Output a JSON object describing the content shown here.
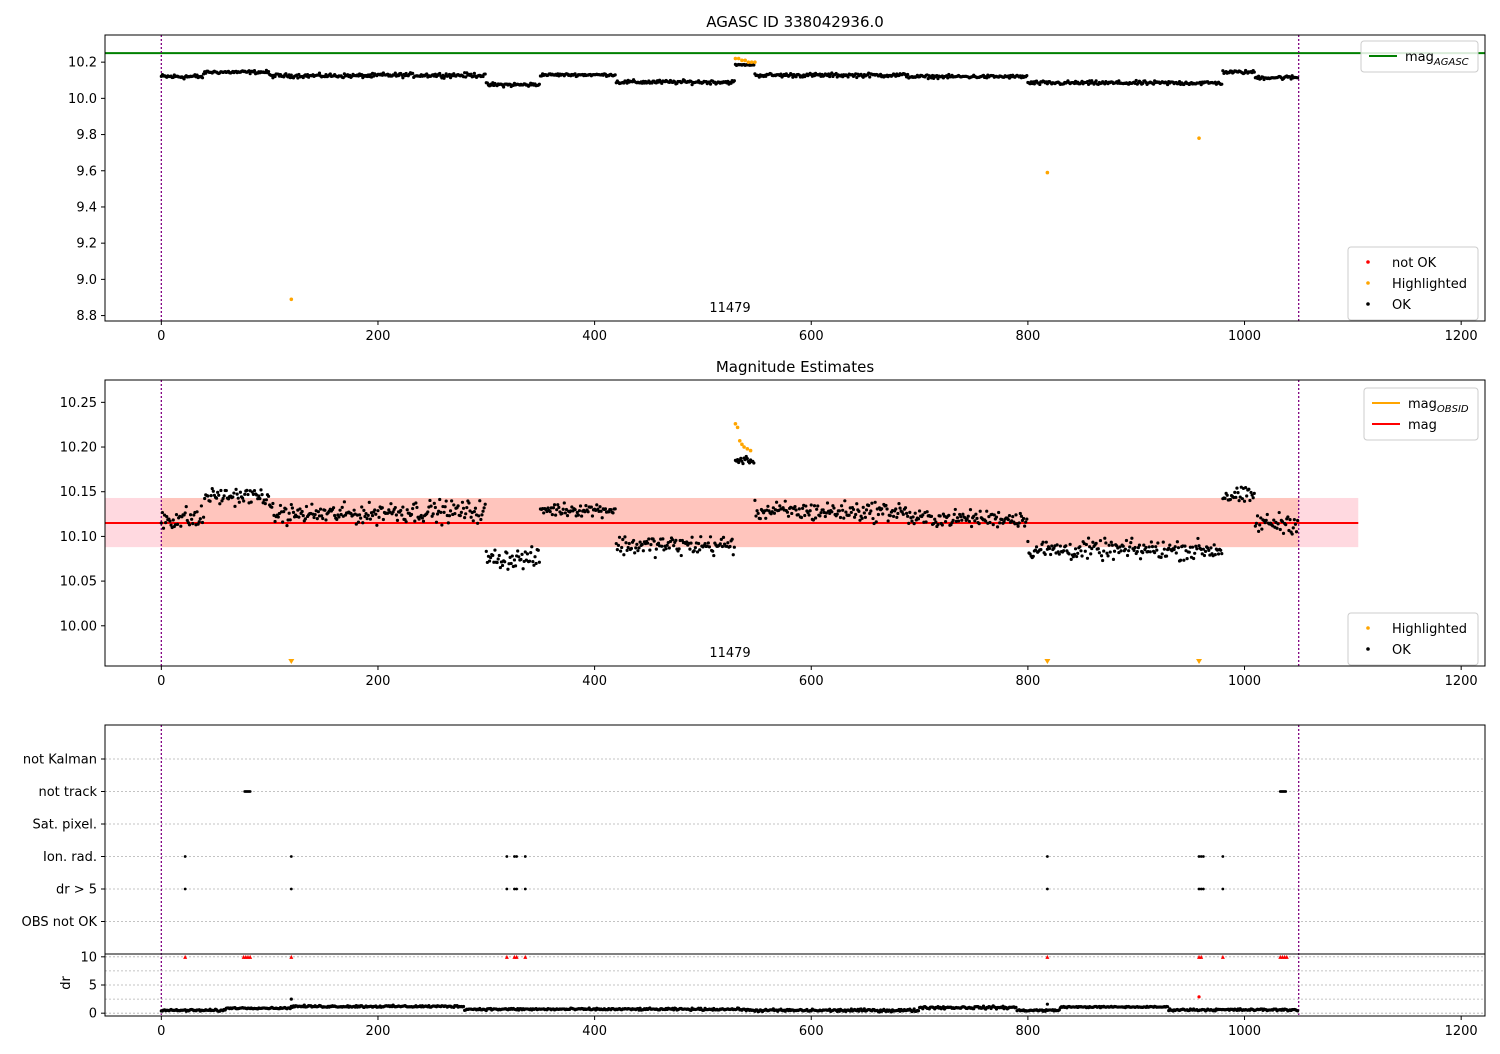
{
  "chart_data": [
    {
      "type": "scatter",
      "title": "AGASC ID 338042936.0",
      "xlabel": "",
      "ylabel": "",
      "xlim": [
        -52,
        1222
      ],
      "ylim": [
        8.77,
        10.35
      ],
      "xticks": [
        0,
        200,
        400,
        600,
        800,
        1000,
        1200
      ],
      "yticks": [
        8.8,
        9.0,
        9.2,
        9.4,
        9.6,
        9.8,
        10.0,
        10.2
      ],
      "ytick_labels": [
        "8.8",
        "9.0",
        "9.2",
        "9.4",
        "9.6",
        "9.8",
        "10.0",
        "10.2"
      ],
      "obsid_label": "11479",
      "obsid_boundaries": [
        0,
        1050
      ],
      "hlines": [
        {
          "name": "mag_AGASC",
          "y": 10.25,
          "color": "#008000"
        }
      ],
      "legends": [
        {
          "position": "top-right",
          "entries": [
            {
              "label": "mag",
              "sub": "AGASC",
              "kind": "line",
              "color": "#008000"
            }
          ]
        },
        {
          "position": "lower-right",
          "entries": [
            {
              "label": "not OK",
              "kind": "dot",
              "color": "#ff0000"
            },
            {
              "label": "Highlighted",
              "kind": "dot",
              "color": "#ffa500"
            },
            {
              "label": "OK",
              "kind": "dot",
              "color": "#000000"
            }
          ]
        }
      ],
      "series": [
        {
          "name": "OK",
          "color": "#000000",
          "note": "~1000 dense points between x=0 and x=1050, y≈10.05–10.19 (see magnitude panel)"
        },
        {
          "name": "Highlighted",
          "color": "#ffa500",
          "points": [
            [
              120,
              8.89
            ],
            [
              530,
              10.22
            ],
            [
              533,
              10.22
            ],
            [
              536,
              10.21
            ],
            [
              539,
              10.21
            ],
            [
              542,
              10.2
            ],
            [
              545,
              10.2
            ],
            [
              548,
              10.2
            ],
            [
              818,
              9.59
            ],
            [
              958,
              9.78
            ]
          ]
        }
      ]
    },
    {
      "type": "scatter",
      "title": "Magnitude Estimates",
      "xlabel": "",
      "ylabel": "",
      "xlim": [
        -52,
        1222
      ],
      "ylim": [
        9.955,
        10.275
      ],
      "xticks": [
        0,
        200,
        400,
        600,
        800,
        1000,
        1200
      ],
      "yticks": [
        10.0,
        10.05,
        10.1,
        10.15,
        10.2,
        10.25
      ],
      "ytick_labels": [
        "10.00",
        "10.05",
        "10.10",
        "10.15",
        "10.20",
        "10.25"
      ],
      "obsid_label": "11479",
      "obsid_boundaries": [
        0,
        1050
      ],
      "mag_line": {
        "name": "mag",
        "y": 10.115,
        "color": "#ff0000"
      },
      "mag_band": {
        "y0": 10.088,
        "y1": 10.143,
        "x0": -52,
        "x1": 1105,
        "color": "#ffc0cb"
      },
      "obsid_line": {
        "name": "mag_OBSID",
        "y": 10.115,
        "x0": 0,
        "x1": 1050,
        "color": "#ffa500"
      },
      "obsid_band": {
        "y0": 10.088,
        "y1": 10.143,
        "x0": 0,
        "x1": 1050,
        "color": "#ffa07a"
      },
      "legends": [
        {
          "position": "top-right",
          "entries": [
            {
              "label": "mag",
              "sub": "OBSID",
              "kind": "line",
              "color": "#ffa500"
            },
            {
              "label": "mag",
              "kind": "line",
              "color": "#ff0000"
            }
          ]
        },
        {
          "position": "lower-right",
          "entries": [
            {
              "label": "Highlighted",
              "kind": "dot",
              "color": "#ffa500"
            },
            {
              "label": "OK",
              "kind": "dot",
              "color": "#000000"
            }
          ]
        }
      ],
      "series": [
        {
          "name": "OK",
          "color": "#000000",
          "segments": [
            {
              "x": [
                0,
                40
              ],
              "mean": 10.12,
              "spread": 0.022
            },
            {
              "x": [
                40,
                100
              ],
              "mean": 10.145,
              "spread": 0.015
            },
            {
              "x": [
                100,
                200
              ],
              "mean": 10.125,
              "spread": 0.018
            },
            {
              "x": [
                200,
                300
              ],
              "mean": 10.128,
              "spread": 0.02
            },
            {
              "x": [
                300,
                350
              ],
              "mean": 10.075,
              "spread": 0.018
            },
            {
              "x": [
                350,
                420
              ],
              "mean": 10.13,
              "spread": 0.012
            },
            {
              "x": [
                420,
                530
              ],
              "mean": 10.09,
              "spread": 0.018
            },
            {
              "x": [
                530,
                548
              ],
              "mean": 10.185,
              "spread": 0.006
            },
            {
              "x": [
                548,
                690
              ],
              "mean": 10.128,
              "spread": 0.018
            },
            {
              "x": [
                690,
                800
              ],
              "mean": 10.12,
              "spread": 0.015
            },
            {
              "x": [
                800,
                980
              ],
              "mean": 10.085,
              "spread": 0.018
            },
            {
              "x": [
                980,
                1010
              ],
              "mean": 10.145,
              "spread": 0.015
            },
            {
              "x": [
                1010,
                1050
              ],
              "mean": 10.115,
              "spread": 0.018
            }
          ]
        },
        {
          "name": "Highlighted",
          "color": "#ffa500",
          "points": [
            [
              530,
              10.226
            ],
            [
              532,
              10.222
            ],
            [
              534,
              10.207
            ],
            [
              536,
              10.203
            ],
            [
              538,
              10.2
            ],
            [
              541,
              10.198
            ],
            [
              544,
              10.196
            ]
          ]
        },
        {
          "name": "Highlighted (below range)",
          "color": "#ffa500",
          "points": [
            [
              120,
              9.96
            ],
            [
              818,
              9.96
            ],
            [
              958,
              9.96
            ]
          ]
        }
      ]
    },
    {
      "type": "scatter",
      "title": "",
      "xlabel": "",
      "ylabel": "",
      "xlim": [
        -52,
        1222
      ],
      "xticks": [
        0,
        200,
        400,
        600,
        800,
        1000,
        1200
      ],
      "obsid_boundaries": [
        0,
        1050
      ],
      "categories": [
        "not Kalman",
        "not track",
        "Sat. pixel.",
        "Ion. rad.",
        "dr > 5",
        "OBS not OK"
      ],
      "flags": {
        "not track": [
          77,
          78,
          79,
          80,
          81,
          82,
          1033,
          1034,
          1035,
          1036,
          1037,
          1038
        ],
        "Ion. rad.": [
          22,
          120,
          319,
          326,
          328,
          336,
          818,
          958,
          960,
          962,
          980
        ],
        "dr > 5": [
          22,
          120,
          319,
          326,
          328,
          336,
          818,
          958,
          960,
          962,
          980
        ]
      }
    },
    {
      "type": "scatter",
      "title": "",
      "xlabel": "",
      "ylabel": "dr",
      "xlim": [
        -52,
        1222
      ],
      "ylim": [
        -0.5,
        10.5
      ],
      "xticks": [
        0,
        200,
        400,
        600,
        800,
        1000,
        1200
      ],
      "yticks": [
        0,
        5,
        10
      ],
      "ytick_labels": [
        "0",
        "5",
        "10"
      ],
      "obsid_boundaries": [
        0,
        1050
      ],
      "series": [
        {
          "name": "OK",
          "color": "#000000",
          "segments": [
            {
              "x": [
                0,
                60
              ],
              "mean": 0.5,
              "spread": 0.3
            },
            {
              "x": [
                60,
                120
              ],
              "mean": 0.9,
              "spread": 0.2
            },
            {
              "x": [
                120,
                280
              ],
              "mean": 1.2,
              "spread": 0.3
            },
            {
              "x": [
                280,
                540
              ],
              "mean": 0.7,
              "spread": 0.3
            },
            {
              "x": [
                540,
                700
              ],
              "mean": 0.5,
              "spread": 0.4
            },
            {
              "x": [
                700,
                790
              ],
              "mean": 1.0,
              "spread": 0.4
            },
            {
              "x": [
                790,
                830
              ],
              "mean": 0.5,
              "spread": 0.3
            },
            {
              "x": [
                830,
                930
              ],
              "mean": 1.1,
              "spread": 0.2
            },
            {
              "x": [
                930,
                1050
              ],
              "mean": 0.6,
              "spread": 0.3
            }
          ]
        },
        {
          "name": "OK outliers",
          "color": "#000000",
          "points": [
            [
              120,
              2.5
            ],
            [
              818,
              1.6
            ]
          ]
        },
        {
          "name": "not OK (clipped)",
          "color": "#ff0000",
          "points": [
            [
              22,
              10
            ],
            [
              76,
              10
            ],
            [
              78,
              10
            ],
            [
              80,
              10
            ],
            [
              82,
              10
            ],
            [
              120,
              10
            ],
            [
              319,
              10
            ],
            [
              326,
              10
            ],
            [
              328,
              10
            ],
            [
              336,
              10
            ],
            [
              818,
              10
            ],
            [
              958,
              10
            ],
            [
              960,
              10
            ],
            [
              980,
              10
            ],
            [
              1033,
              10
            ],
            [
              1035,
              10
            ],
            [
              1037,
              10
            ],
            [
              1039,
              10
            ]
          ]
        },
        {
          "name": "not OK",
          "color": "#ff0000",
          "points": [
            [
              958,
              2.9
            ]
          ]
        }
      ]
    }
  ]
}
